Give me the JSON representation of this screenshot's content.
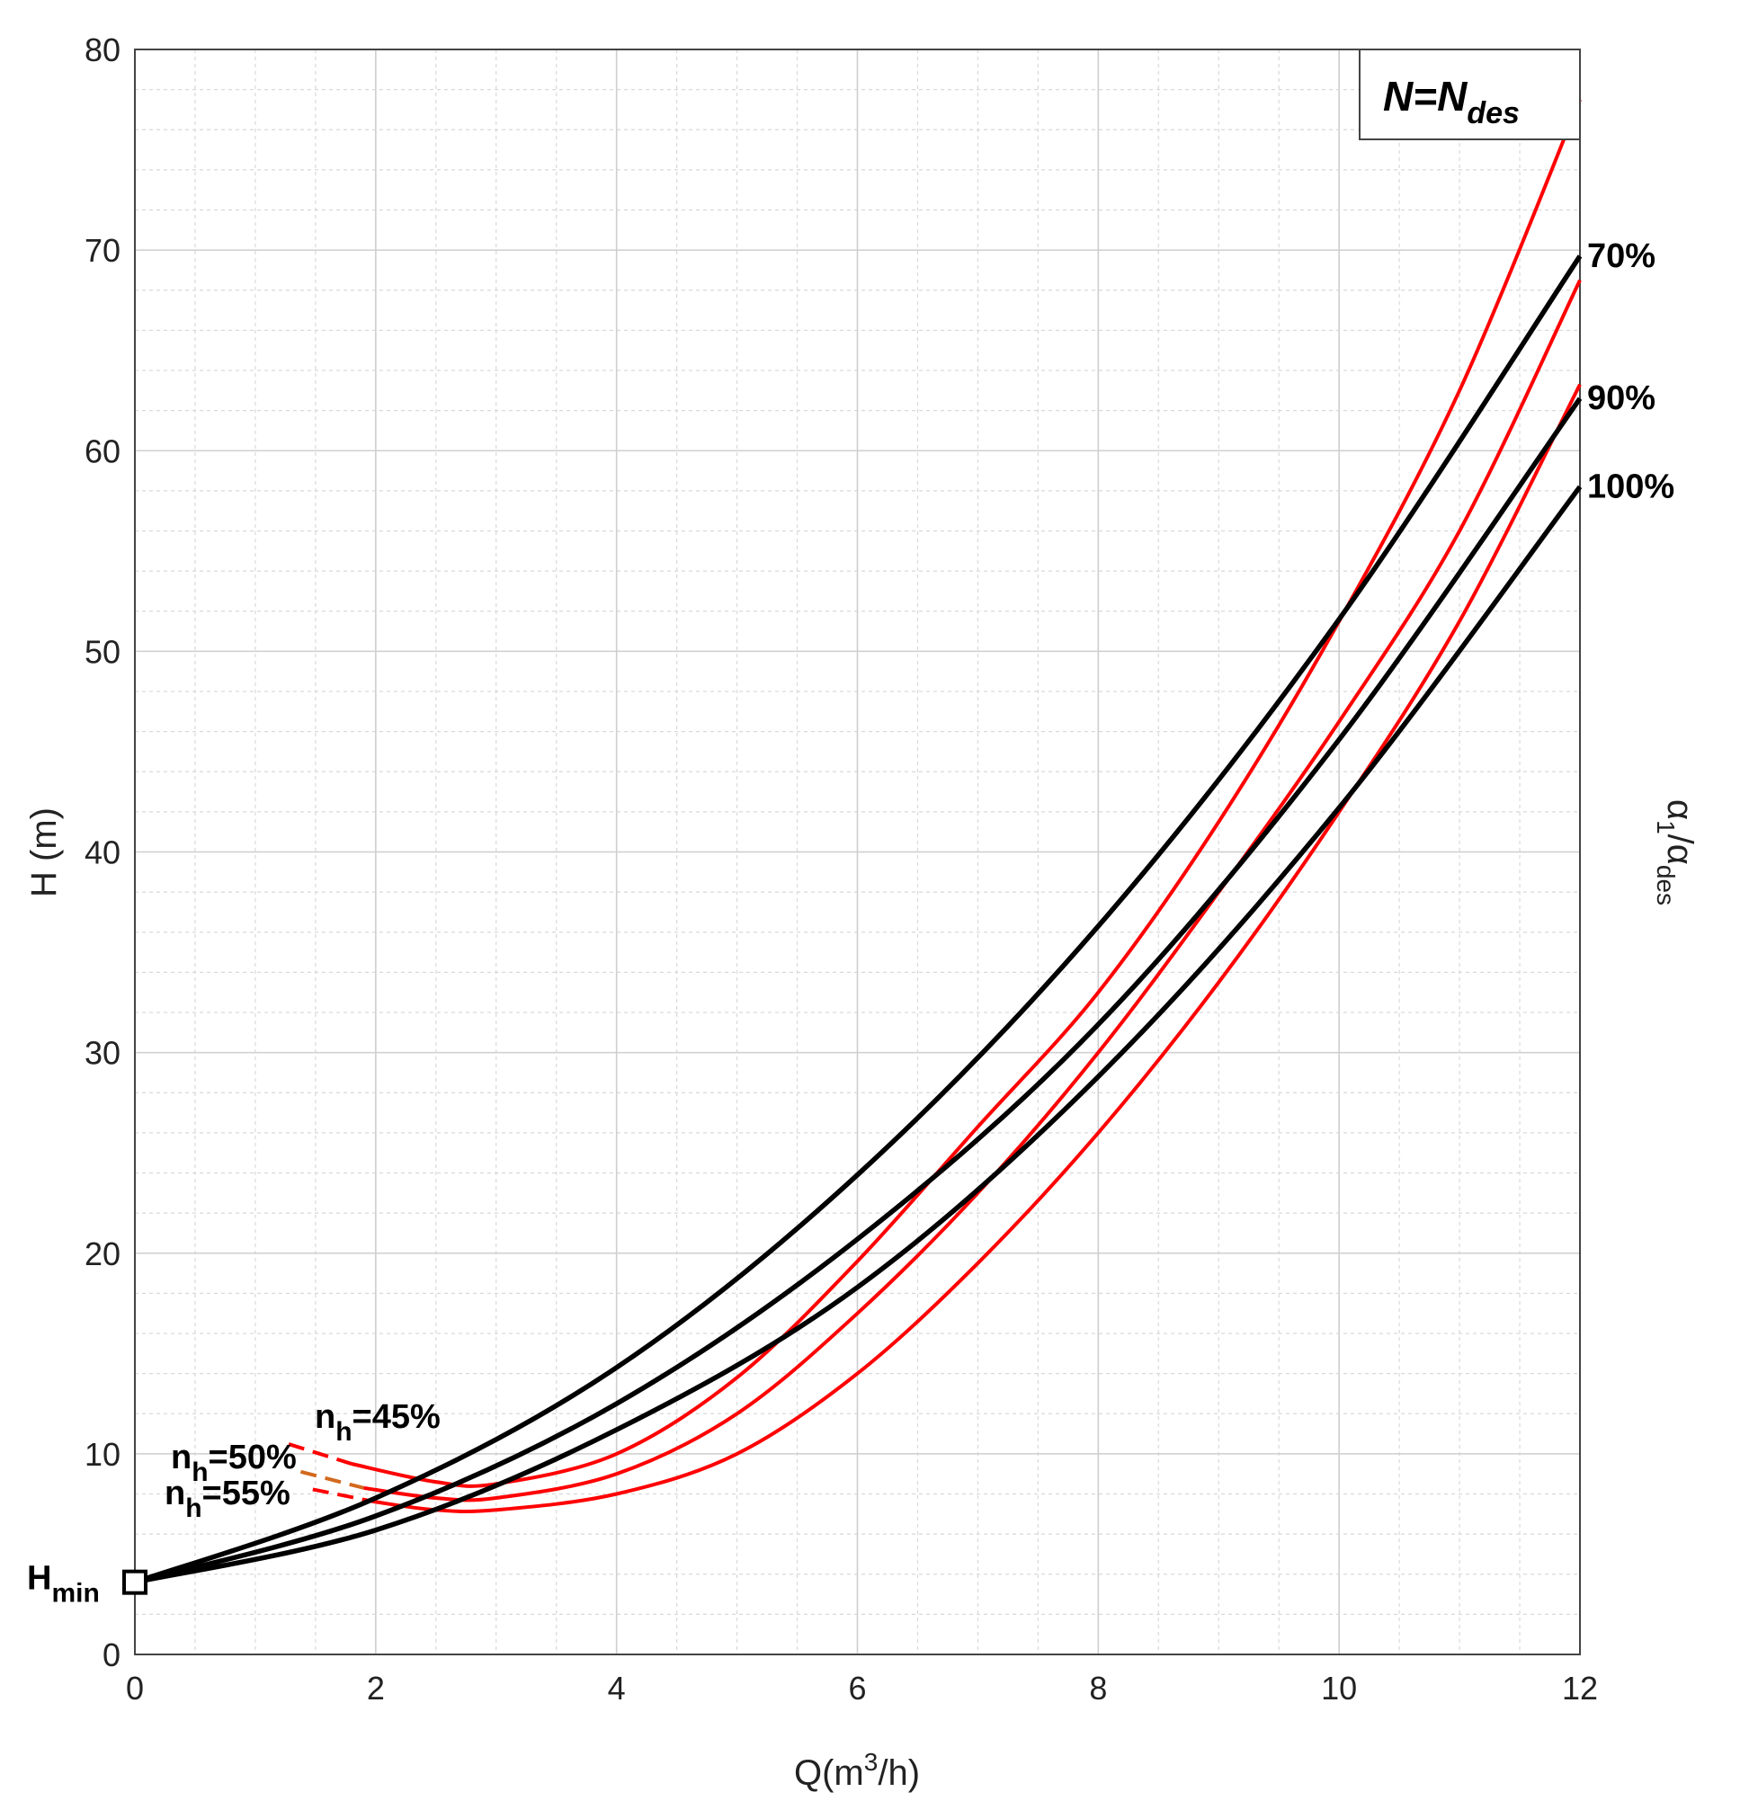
{
  "chart_data": {
    "type": "line",
    "xlabel": {
      "base": "Q(m",
      "sup": "3",
      "tail": "/h)"
    },
    "ylabel": "H (m)",
    "right_label": {
      "base": "α",
      "sub1": "1",
      "mid": "/α",
      "sub2": "des"
    },
    "xlim": [
      0,
      12
    ],
    "ylim": [
      0,
      80
    ],
    "x_ticks": [
      0,
      2,
      4,
      6,
      8,
      10,
      12
    ],
    "y_ticks": [
      0,
      10,
      20,
      30,
      40,
      50,
      60,
      70,
      80
    ],
    "grid": true,
    "minor_grid": true,
    "legend": {
      "main": "N=N",
      "sub": "des",
      "position": "top-right"
    },
    "colors": {
      "system_curve": "#000000",
      "efficiency_curve": "#ff0000",
      "grid": "#d9d9d9"
    },
    "h_min": {
      "label": "H",
      "sub": "min",
      "x": 0,
      "y": 3.6
    },
    "system_curves": [
      {
        "label": "70%",
        "x": [
          0,
          2,
          4,
          6,
          8,
          10,
          12
        ],
        "y": [
          3.6,
          7.8,
          14.3,
          23.9,
          36.3,
          51.6,
          69.7
        ]
      },
      {
        "label": "90%",
        "x": [
          0,
          2,
          4,
          6,
          8,
          10,
          12
        ],
        "y": [
          3.6,
          6.9,
          12.5,
          20.7,
          31.4,
          45.6,
          62.6
        ]
      },
      {
        "label": "100%",
        "x": [
          0,
          2,
          4,
          6,
          8,
          10,
          12
        ],
        "y": [
          3.6,
          6.2,
          11.2,
          18.3,
          28.8,
          42.2,
          58.2
        ]
      }
    ],
    "efficiency_curves": [
      {
        "label": "n",
        "sub": "h",
        "value": "=45%",
        "x": [
          1.8,
          2.5,
          3.0,
          4.0,
          5.0,
          6.0,
          7.0,
          8.0,
          9.0,
          10.0,
          11.0,
          12.0
        ],
        "y": [
          9.5,
          8.6,
          8.5,
          10.0,
          13.8,
          19.6,
          26.3,
          33.0,
          41.5,
          51.5,
          63.0,
          77.5
        ]
      },
      {
        "label": "n",
        "sub": "h",
        "value": "=50%",
        "x": [
          1.9,
          2.5,
          3.0,
          4.0,
          5.0,
          6.0,
          7.0,
          8.0,
          9.0,
          10.0,
          11.0,
          12.0
        ],
        "y": [
          8.3,
          7.8,
          7.8,
          9.0,
          12.0,
          17.0,
          23.0,
          30.0,
          38.0,
          46.5,
          56.0,
          68.5
        ]
      },
      {
        "label": "n",
        "sub": "h",
        "value": "=55%",
        "x": [
          2.0,
          2.5,
          3.0,
          4.0,
          5.0,
          6.0,
          7.0,
          8.0,
          9.0,
          10.0,
          11.0,
          12.0
        ],
        "y": [
          7.6,
          7.2,
          7.2,
          8.0,
          10.0,
          14.0,
          19.5,
          26.0,
          33.5,
          42.0,
          51.5,
          63.3
        ]
      }
    ]
  }
}
